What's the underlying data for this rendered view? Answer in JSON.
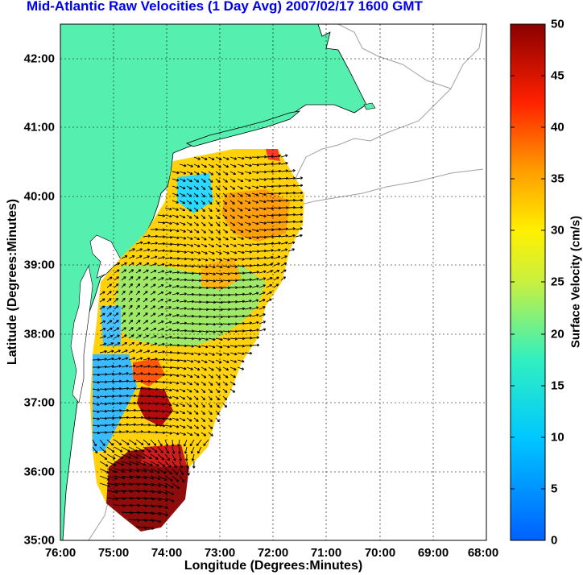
{
  "title": "Mid-Atlantic Raw Velocities (1 Day Avg) 2007/02/17 1600 GMT",
  "x_axis": {
    "label": "Longitude (Degrees:Minutes)",
    "ticks": [
      "76:00",
      "75:00",
      "74:00",
      "73:00",
      "72:00",
      "71:00",
      "70:00",
      "69:00",
      "68:00"
    ]
  },
  "y_axis": {
    "label": "Latitude (Degrees:Minutes)",
    "ticks": [
      "42:00",
      "41:00",
      "40:00",
      "39:00",
      "38:00",
      "37:00",
      "36:00",
      "35:00"
    ]
  },
  "colorbar": {
    "label": "Surface Velocity (cm/s)",
    "ticks": [
      "50",
      "45",
      "40",
      "35",
      "30",
      "25",
      "20",
      "15",
      "10",
      "5",
      "0"
    ],
    "min": 0,
    "max": 50
  },
  "map_extent": {
    "lon_west": -76,
    "lon_east": -68,
    "lat_south": 35,
    "lat_north": 42.5
  },
  "colors": {
    "land": "#55efb0",
    "water": "#ffffff",
    "title": "#0000ee",
    "contour": "#a0a0a0"
  }
}
